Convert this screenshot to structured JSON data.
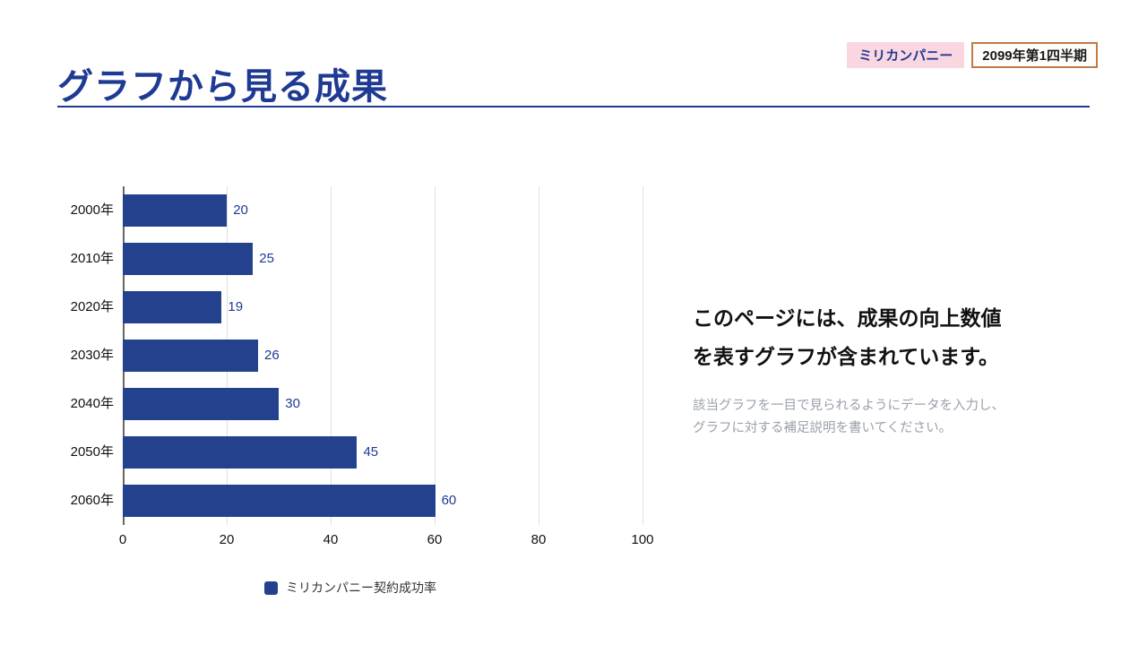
{
  "page": {
    "title": "グラフから見る成果",
    "badges": {
      "company": "ミリカンパニー",
      "period": "2099年第1四半期"
    }
  },
  "chart_data": {
    "type": "bar",
    "orientation": "horizontal",
    "categories": [
      "2000年",
      "2010年",
      "2020年",
      "2030年",
      "2040年",
      "2050年",
      "2060年"
    ],
    "values": [
      20,
      25,
      19,
      26,
      30,
      45,
      60
    ],
    "xlim": [
      0,
      100
    ],
    "x_ticks": [
      0,
      20,
      40,
      60,
      80,
      100
    ],
    "legend": [
      "ミリカンパニー契約成功率"
    ],
    "grid": true,
    "legend_position": "bottom",
    "bar_color": "#24418e",
    "value_label_color": "#1e3a93"
  },
  "description": {
    "heading_line1": "このページには、成果の向上数値",
    "heading_line2": "を表すグラフが含まれています。",
    "body_line1": "該当グラフを一目で見られるようにデータを入力し、",
    "body_line2": "グラフに対する補足説明を書いてください。"
  },
  "colors": {
    "navy": "#1e3a93",
    "bar": "#24418e",
    "pink_badge_bg": "#fad7e0",
    "badge_border_orange": "#c0794a",
    "gridline": "#e0e0e0",
    "axis_line": "#666666",
    "text_dark": "#111111",
    "text_gray": "#9aa0ab"
  }
}
